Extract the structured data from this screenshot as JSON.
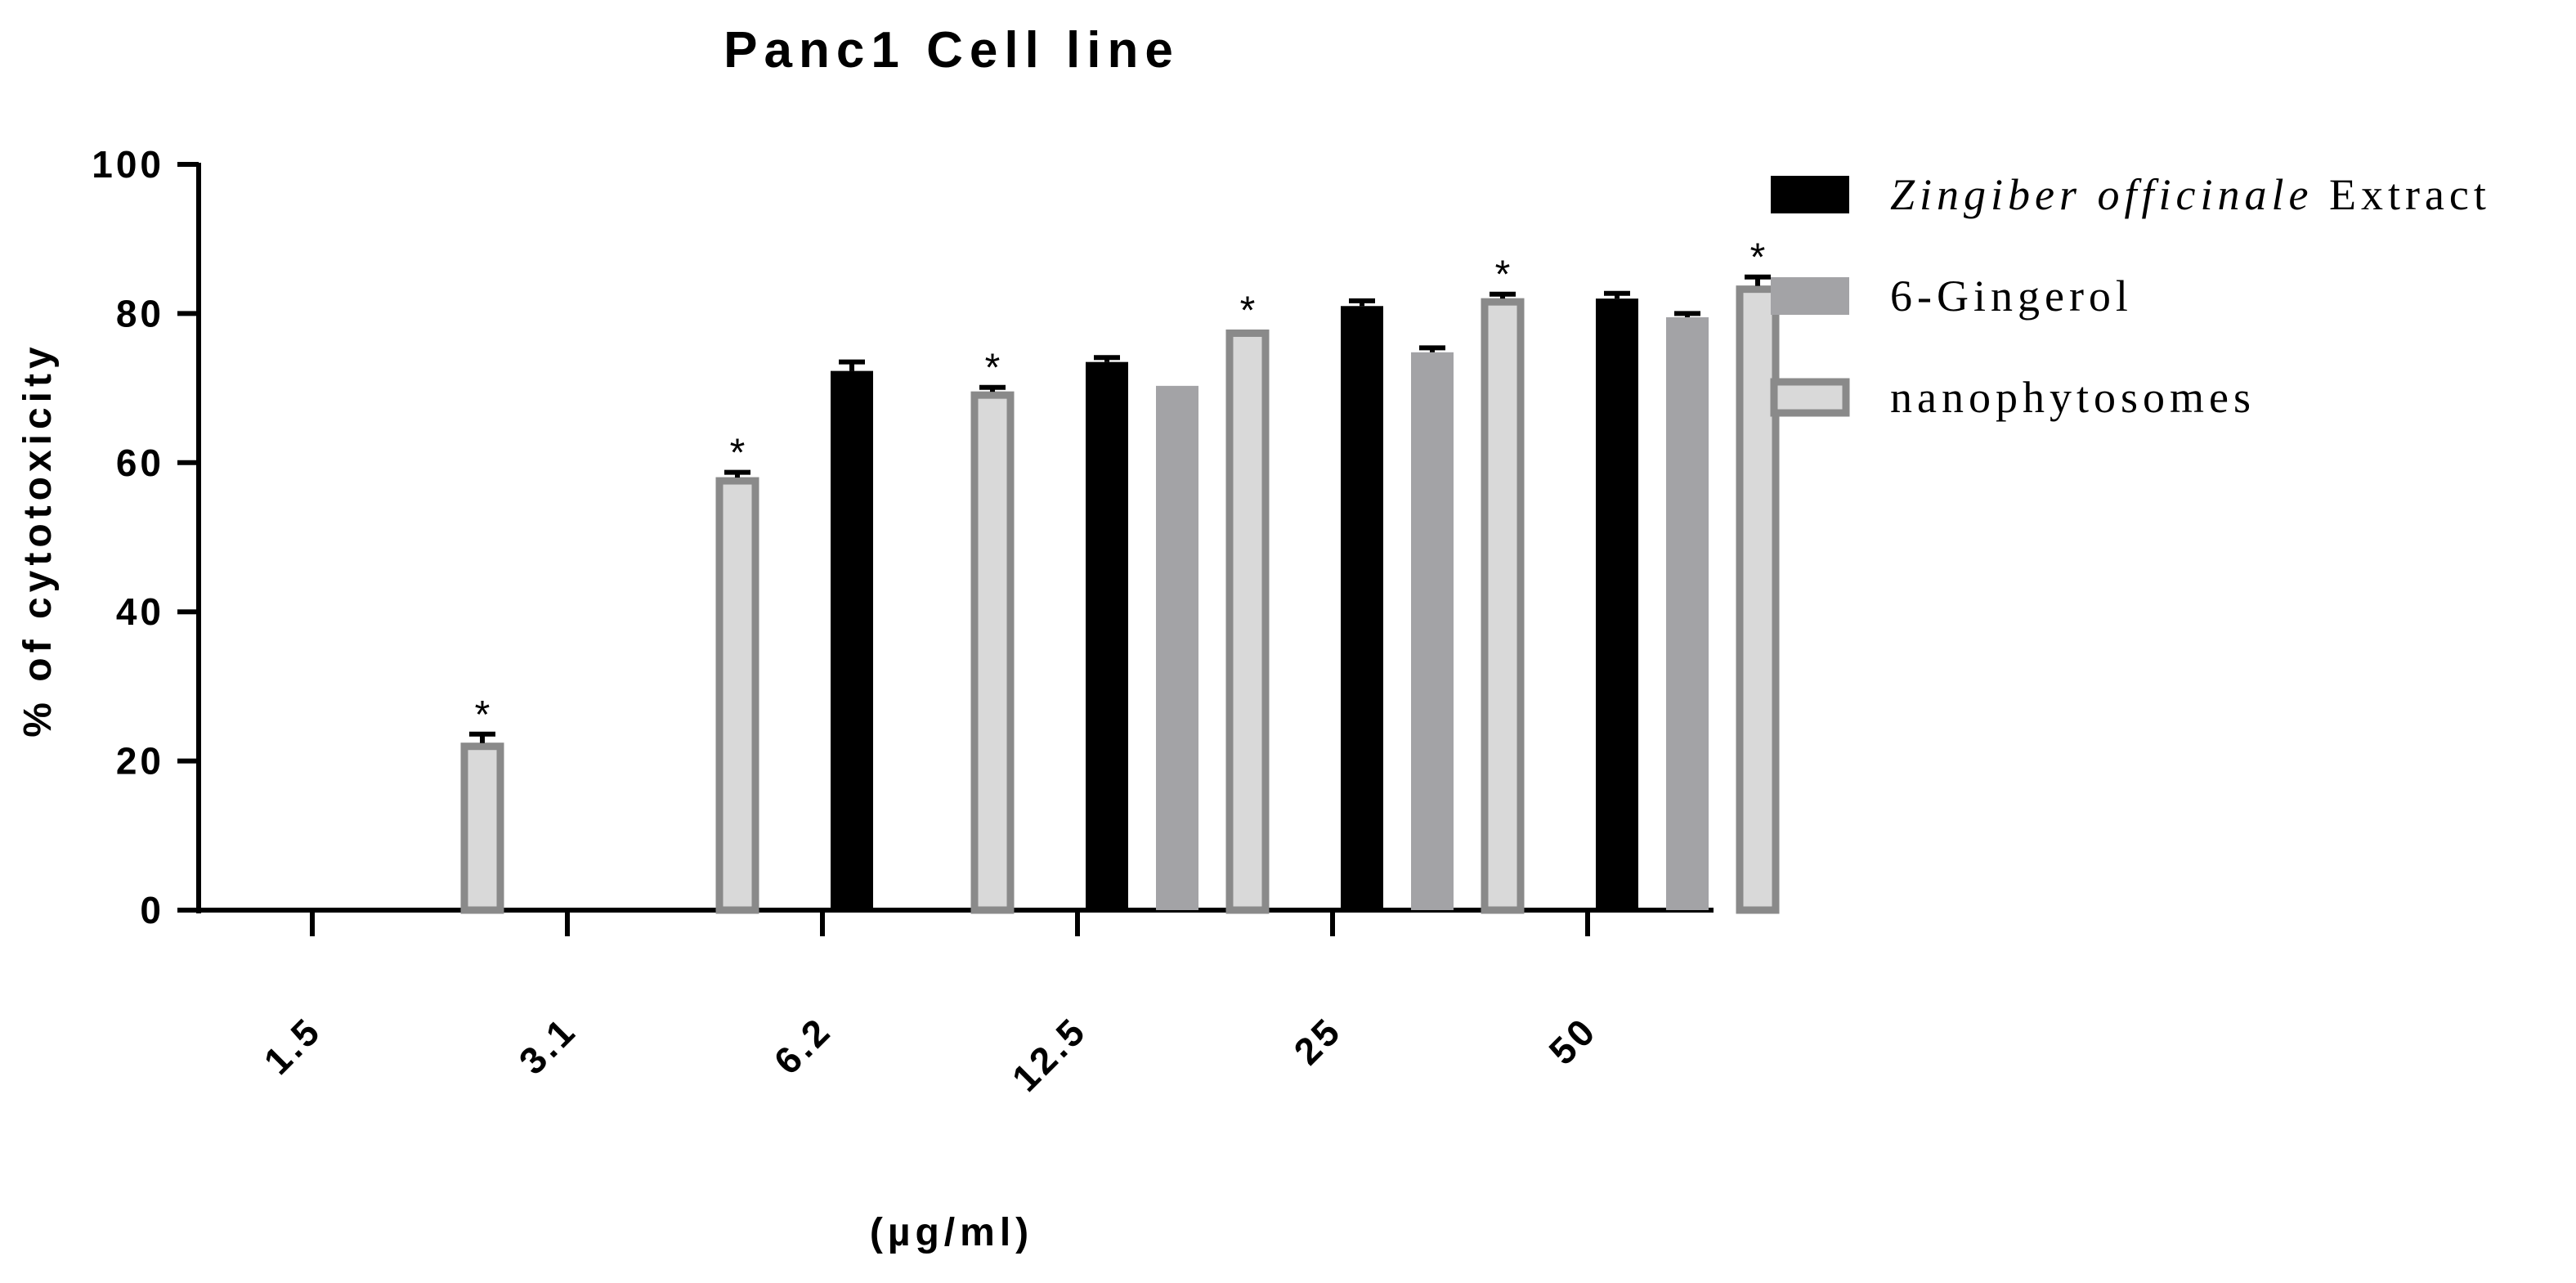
{
  "chart_data": {
    "type": "bar",
    "title": "Panc1  Cell line",
    "xlabel": "(µg/ml)",
    "ylabel": "% of cytotoxicity",
    "ylim": [
      0,
      100
    ],
    "yticks": [
      0,
      20,
      40,
      60,
      80,
      100
    ],
    "categories": [
      "1.5",
      "3.1",
      "6.2",
      "12.5",
      "25",
      "50"
    ],
    "series": [
      {
        "name": "Zingiber officinale Extract",
        "legend_italic": "Zingiber officinale",
        "legend_plain": " Extract",
        "color": "#000000",
        "values": [
          0,
          0,
          72.3,
          73.5,
          81,
          82
        ],
        "errors": [
          0,
          0,
          1.2,
          0.6,
          0.7,
          0.7
        ],
        "stars": [
          false,
          false,
          false,
          false,
          false,
          false
        ]
      },
      {
        "name": "6-Gingerol",
        "color": "#a3a3a6",
        "values": [
          0,
          0,
          0,
          70.3,
          74.8,
          79.5
        ],
        "errors": [
          0,
          0,
          0,
          0,
          0.6,
          0.5
        ],
        "stars": [
          false,
          false,
          false,
          false,
          false,
          false
        ]
      },
      {
        "name": "nanophytosomes",
        "color": "#d9d9d9",
        "stroke": "#8a8a8a",
        "values": [
          22.4,
          58,
          69.5,
          77.8,
          82,
          83.7
        ],
        "errors": [
          1.2,
          0.7,
          0.6,
          0,
          0.6,
          1.2
        ],
        "stars": [
          true,
          true,
          true,
          true,
          true,
          true
        ]
      }
    ],
    "star_symbol": "*",
    "legend_position": "right",
    "grid": false
  }
}
